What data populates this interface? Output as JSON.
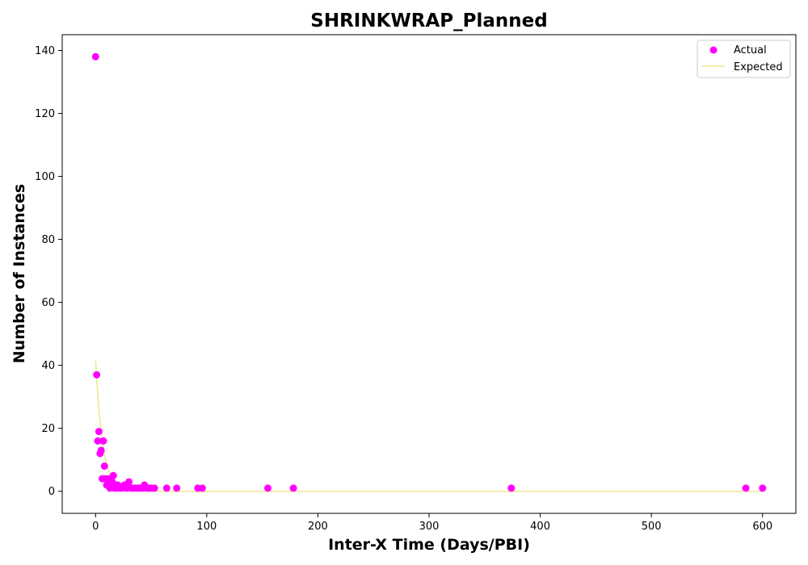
{
  "chart_data": {
    "type": "scatter",
    "title": "SHRINKWRAP_Planned",
    "xlabel": "Inter-X Time (Days/PBI)",
    "ylabel": "Number of Instances",
    "xlim": [
      -30,
      630
    ],
    "ylim": [
      -7,
      145
    ],
    "xticks": [
      0,
      100,
      200,
      300,
      400,
      500,
      600
    ],
    "yticks": [
      0,
      20,
      40,
      60,
      80,
      100,
      120,
      140
    ],
    "grid": false,
    "legend_position": "top-right",
    "series": [
      {
        "name": "Actual",
        "kind": "scatter",
        "color": "#ff00ff",
        "points": [
          [
            0,
            138
          ],
          [
            1,
            37
          ],
          [
            2,
            16
          ],
          [
            3,
            19
          ],
          [
            4,
            12
          ],
          [
            5,
            13
          ],
          [
            6,
            4
          ],
          [
            7,
            16
          ],
          [
            8,
            8
          ],
          [
            9,
            4
          ],
          [
            10,
            2
          ],
          [
            11,
            3
          ],
          [
            12,
            4
          ],
          [
            13,
            1
          ],
          [
            14,
            2
          ],
          [
            15,
            3
          ],
          [
            16,
            5
          ],
          [
            17,
            1
          ],
          [
            18,
            2
          ],
          [
            19,
            1
          ],
          [
            20,
            2
          ],
          [
            22,
            1
          ],
          [
            24,
            1
          ],
          [
            26,
            2
          ],
          [
            28,
            1
          ],
          [
            30,
            3
          ],
          [
            32,
            1
          ],
          [
            34,
            1
          ],
          [
            36,
            1
          ],
          [
            38,
            1
          ],
          [
            40,
            1
          ],
          [
            42,
            1
          ],
          [
            44,
            2
          ],
          [
            46,
            1
          ],
          [
            48,
            1
          ],
          [
            50,
            1
          ],
          [
            53,
            1
          ],
          [
            64,
            1
          ],
          [
            73,
            1
          ],
          [
            92,
            1
          ],
          [
            96,
            1
          ],
          [
            155,
            1
          ],
          [
            178,
            1
          ],
          [
            374,
            1
          ],
          [
            585,
            1
          ],
          [
            600,
            1
          ]
        ]
      },
      {
        "name": "Expected",
        "kind": "line",
        "color": "#f0e68c",
        "points": [
          [
            0,
            41.5
          ],
          [
            2,
            30.3
          ],
          [
            4,
            22.1
          ],
          [
            6,
            16.1
          ],
          [
            8,
            11.8
          ],
          [
            10,
            8.6
          ],
          [
            12,
            6.3
          ],
          [
            14,
            4.6
          ],
          [
            16,
            3.3
          ],
          [
            18,
            2.4
          ],
          [
            20,
            1.8
          ],
          [
            25,
            0.8
          ],
          [
            30,
            0.35
          ],
          [
            35,
            0.16
          ],
          [
            40,
            0.07
          ],
          [
            50,
            0.01
          ],
          [
            60,
            0
          ],
          [
            100,
            0
          ],
          [
            200,
            0
          ],
          [
            300,
            0
          ],
          [
            400,
            0
          ],
          [
            500,
            0
          ],
          [
            600,
            0
          ]
        ]
      }
    ]
  }
}
